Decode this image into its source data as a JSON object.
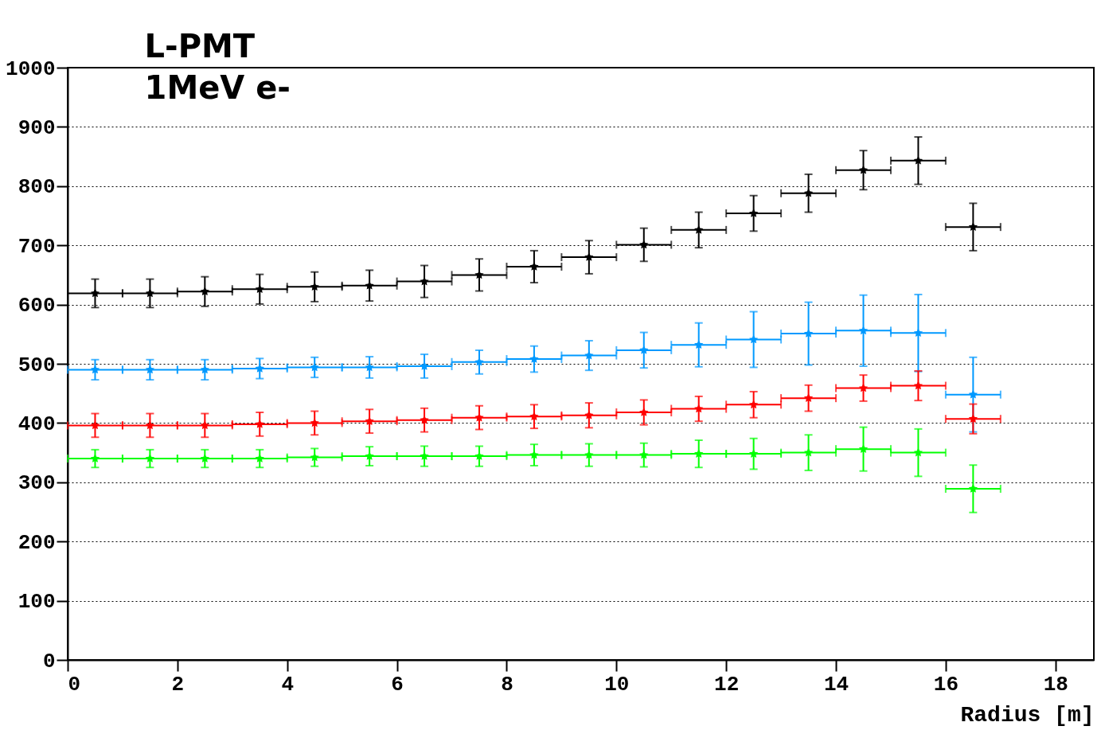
{
  "chart_data": {
    "type": "scatter",
    "title": "L-PMT\n1MeV e-",
    "xlabel": "Radius [m]",
    "x": [
      0.5,
      1.5,
      2.5,
      3.5,
      4.5,
      5.5,
      6.5,
      7.5,
      8.5,
      9.5,
      10.5,
      11.5,
      12.5,
      13.5,
      14.5,
      15.5,
      16.5
    ],
    "xlim": [
      0,
      18.7
    ],
    "xticks": [
      0,
      2,
      4,
      6,
      8,
      10,
      12,
      14,
      16,
      18
    ],
    "ylim": [
      0,
      1000
    ],
    "yticks": [
      0,
      100,
      200,
      300,
      400,
      500,
      600,
      700,
      800,
      900,
      1000
    ],
    "grid": "y",
    "marker": "star",
    "series": [
      {
        "color": "#000000",
        "values": [
          619,
          619,
          622,
          626,
          630,
          632,
          639,
          650,
          664,
          680,
          701,
          726,
          754,
          788,
          827,
          843,
          731
        ],
        "errors": [
          24,
          24,
          25,
          25,
          25,
          26,
          27,
          27,
          27,
          28,
          28,
          30,
          30,
          32,
          33,
          40,
          40
        ],
        "xerrors": [
          0.5,
          0.5,
          0.5,
          0.5,
          0.5,
          0.5,
          0.5,
          0.5,
          0.5,
          0.5,
          0.5,
          0.5,
          0.5,
          0.5,
          0.5,
          0.5,
          0.5
        ]
      },
      {
        "color": "#0099ff",
        "values": [
          490,
          490,
          490,
          492,
          494,
          494,
          496,
          503,
          508,
          514,
          523,
          532,
          541,
          551,
          556,
          552,
          448
        ],
        "errors": [
          17,
          17,
          17,
          17,
          17,
          18,
          20,
          20,
          22,
          25,
          30,
          37,
          47,
          53,
          60,
          65,
          63
        ],
        "xerrors": [
          0.5,
          0.5,
          0.5,
          0.5,
          0.5,
          0.5,
          0.5,
          0.5,
          0.5,
          0.5,
          0.5,
          0.5,
          0.5,
          0.5,
          0.5,
          0.5,
          0.5
        ]
      },
      {
        "color": "#ff0000",
        "values": [
          396,
          396,
          396,
          398,
          400,
          403,
          405,
          409,
          411,
          413,
          418,
          424,
          431,
          442,
          459,
          463,
          407
        ],
        "errors": [
          20,
          20,
          20,
          20,
          20,
          20,
          20,
          20,
          20,
          21,
          21,
          21,
          22,
          22,
          22,
          25,
          25
        ],
        "xerrors": [
          0.5,
          0.5,
          0.5,
          0.5,
          0.5,
          0.5,
          0.5,
          0.5,
          0.5,
          0.5,
          0.5,
          0.5,
          0.5,
          0.5,
          0.5,
          0.5,
          0.5
        ]
      },
      {
        "color": "#00ff00",
        "values": [
          340,
          340,
          340,
          340,
          342,
          344,
          344,
          344,
          346,
          346,
          346,
          348,
          348,
          350,
          356,
          350,
          289
        ],
        "errors": [
          15,
          15,
          15,
          15,
          15,
          16,
          17,
          17,
          18,
          19,
          20,
          23,
          26,
          30,
          37,
          40,
          40
        ],
        "xerrors": [
          0.5,
          0.5,
          0.5,
          0.5,
          0.5,
          0.5,
          0.5,
          0.5,
          0.5,
          0.5,
          0.5,
          0.5,
          0.5,
          0.5,
          0.5,
          0.5,
          0.5
        ]
      }
    ]
  }
}
